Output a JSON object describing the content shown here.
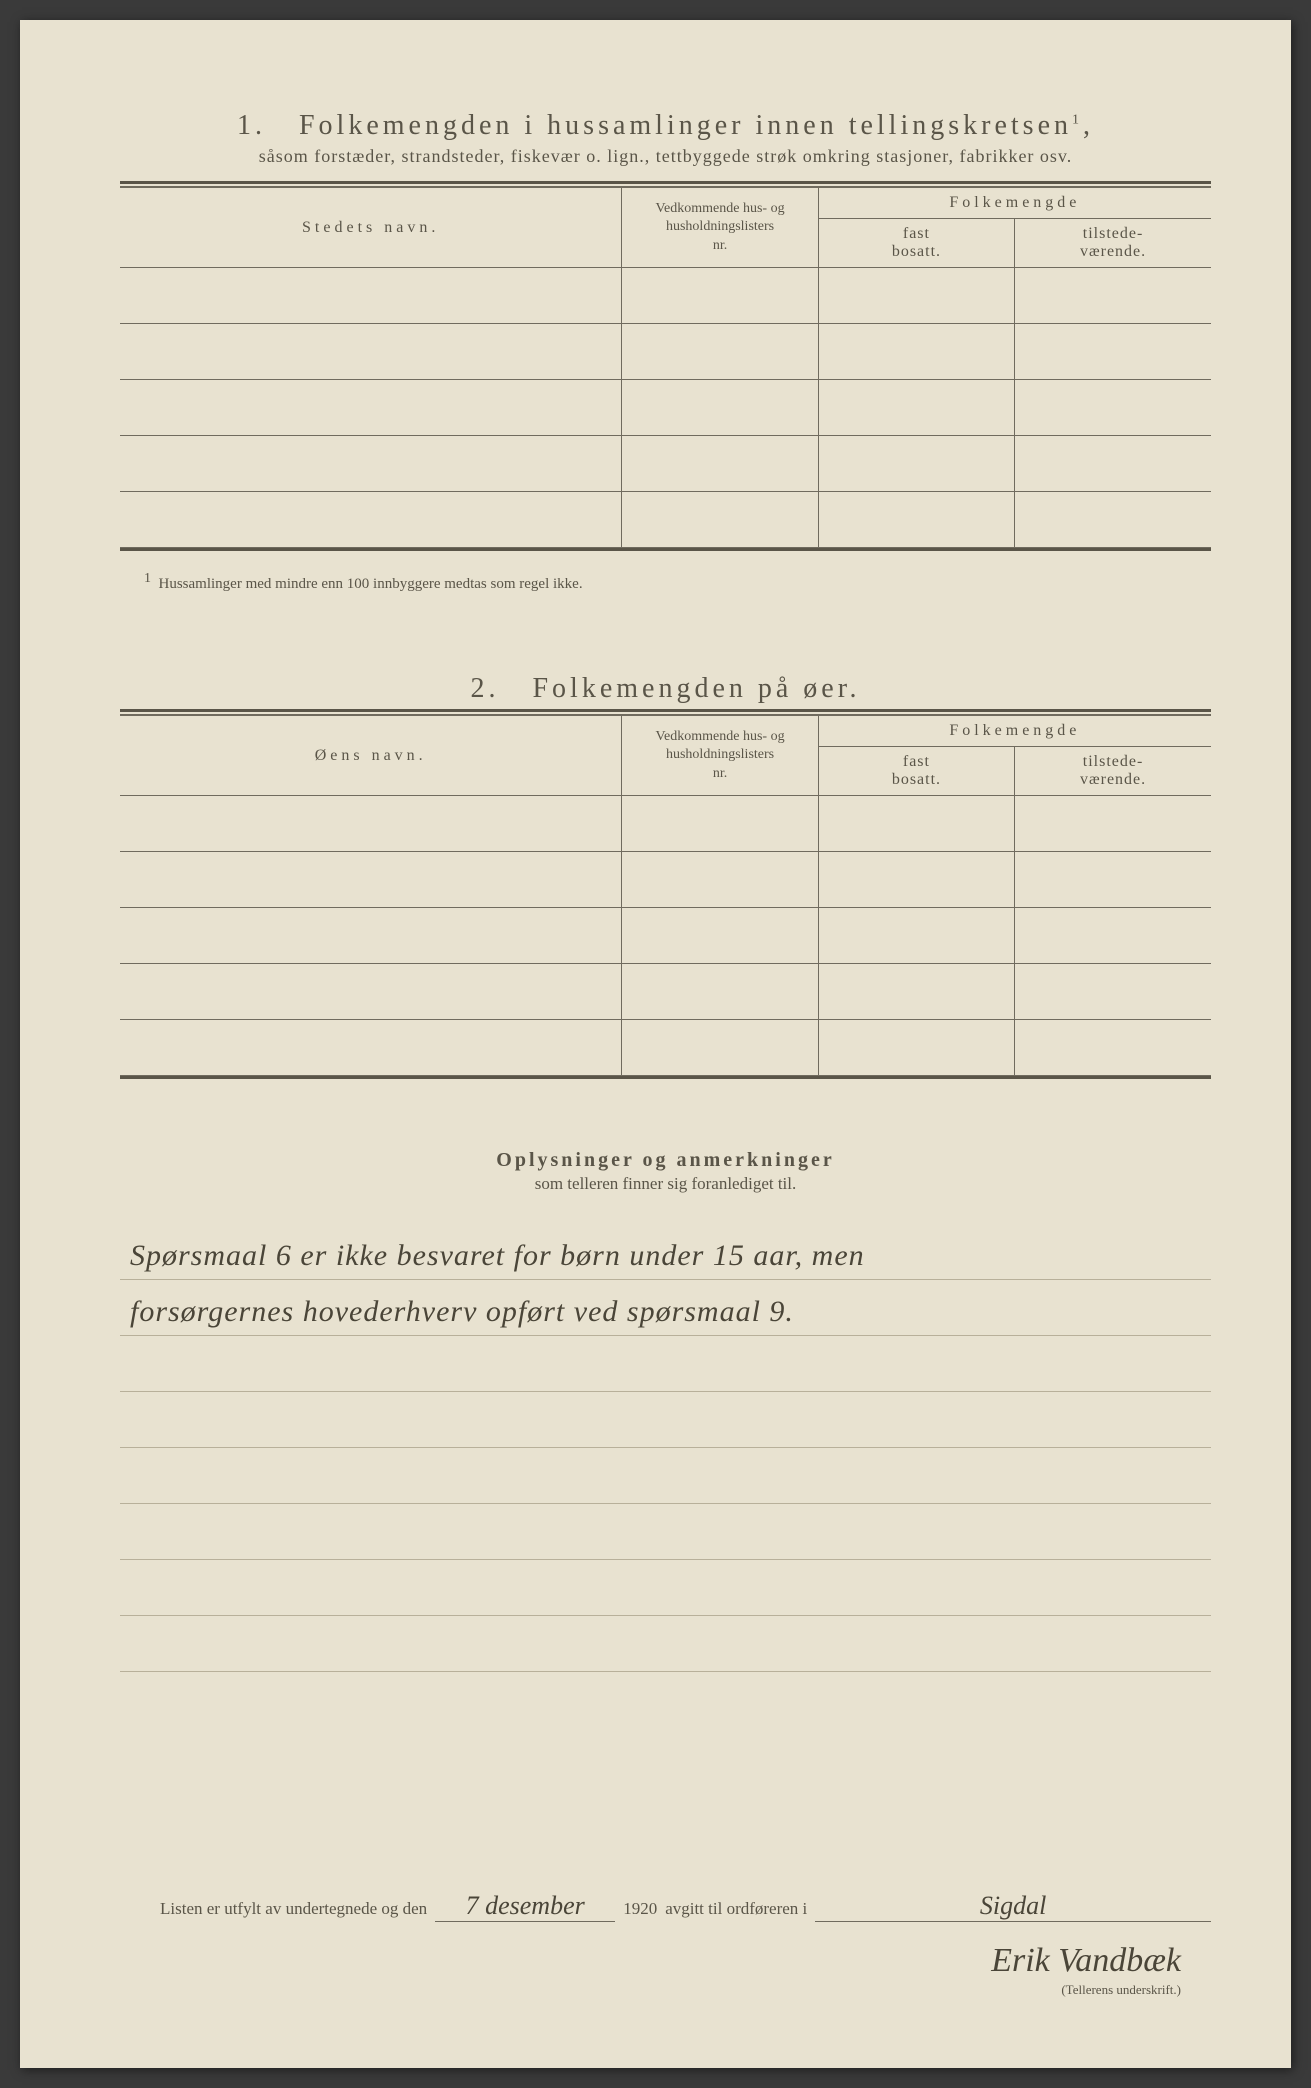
{
  "section1": {
    "number": "1.",
    "title": "Folkemengden i hussamlinger innen tellingskretsen",
    "title_sup": "1",
    "subtitle": "såsom forstæder, strandsteder, fiskevær o. lign., tettbyggede strøk omkring stasjoner, fabrikker osv.",
    "col_name": "Stedets navn.",
    "col_husnr_line1": "Vedkommende hus- og",
    "col_husnr_line2": "husholdningslisters",
    "col_husnr_line3": "nr.",
    "col_folkemengde": "Folkemengde",
    "col_fast_line1": "fast",
    "col_fast_line2": "bosatt.",
    "col_tilstede_line1": "tilstede-",
    "col_tilstede_line2": "værende.",
    "footnote_marker": "1",
    "footnote": "Hussamlinger med mindre enn 100 innbyggere medtas som regel ikke.",
    "rows": 5
  },
  "section2": {
    "number": "2.",
    "title": "Folkemengden på øer.",
    "col_name": "Øens navn.",
    "rows": 5
  },
  "oplysninger": {
    "title": "Oplysninger og anmerkninger",
    "subtitle": "som telleren finner sig foranlediget til.",
    "lines": [
      "Spørsmaal 6 er ikke besvaret for børn under 15 aar, men",
      "forsørgernes hovederhverv opført ved spørsmaal 9.",
      "",
      "",
      "",
      "",
      "",
      ""
    ]
  },
  "signature": {
    "prefix": "Listen er utfylt av undertegnede og den",
    "date_handwritten": "7 desember",
    "year": "1920",
    "mid": "avgitt til ordføreren i",
    "place_handwritten": "Sigdal",
    "name_handwritten": "Erik Vandbæk",
    "caption": "(Tellerens underskrift.)"
  },
  "colors": {
    "paper": "#e8e2d0",
    "ink": "#5a5548",
    "rule": "#706b5e",
    "faint_rule": "#b8b09a",
    "handwriting": "#4a4538"
  }
}
